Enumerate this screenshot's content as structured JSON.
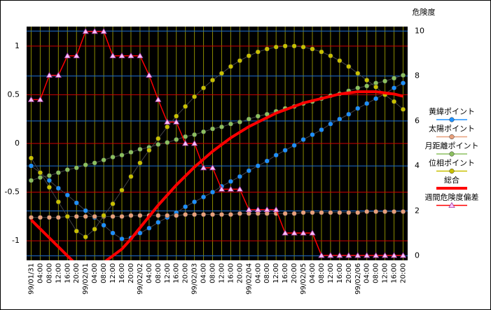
{
  "chart_data": {
    "type": "line",
    "y2_label": "危険度",
    "categories": [
      "99/01/31",
      "04:00",
      "08:00",
      "12:00",
      "16:00",
      "20:00",
      "99/02/01",
      "04:00",
      "08:00",
      "12:00",
      "16:00",
      "20:00",
      "99/02/02",
      "04:00",
      "08:00",
      "12:00",
      "16:00",
      "20:00",
      "99/02/03",
      "04:00",
      "08:00",
      "12:00",
      "16:00",
      "20:00",
      "99/02/04",
      "04:00",
      "08:00",
      "12:00",
      "16:00",
      "20:00",
      "99/02/05",
      "04:00",
      "08:00",
      "12:00",
      "16:00",
      "20:00",
      "99/02/06",
      "04:00",
      "08:00",
      "12:00",
      "16:00",
      "20:00"
    ],
    "ylim": [
      -1.2,
      1.2
    ],
    "yticks": [
      -1,
      -0.5,
      0,
      0.5,
      1
    ],
    "y2lim": [
      -0.2,
      10.2
    ],
    "y2ticks": [
      0,
      2,
      4,
      6,
      8,
      10
    ],
    "grid": true,
    "legend": "right",
    "series": [
      {
        "name": "黄緯ポイント",
        "color": "#1e90ff",
        "marker": "circle",
        "values": [
          -0.23,
          -0.3,
          -0.38,
          -0.46,
          -0.53,
          -0.61,
          -0.69,
          -0.76,
          -0.84,
          -0.92,
          -0.98,
          -0.97,
          -0.92,
          -0.87,
          -0.81,
          -0.76,
          -0.71,
          -0.65,
          -0.6,
          -0.55,
          -0.5,
          -0.44,
          -0.39,
          -0.34,
          -0.28,
          -0.23,
          -0.18,
          -0.12,
          -0.07,
          -0.02,
          0.04,
          0.09,
          0.14,
          0.2,
          0.25,
          0.3,
          0.36,
          0.41,
          0.46,
          0.51,
          0.57,
          0.62
        ]
      },
      {
        "name": "太陽ポイント",
        "color": "#e8a07c",
        "marker": "circle",
        "values": [
          -0.76,
          -0.76,
          -0.76,
          -0.76,
          -0.75,
          -0.75,
          -0.75,
          -0.75,
          -0.75,
          -0.75,
          -0.75,
          -0.74,
          -0.74,
          -0.74,
          -0.74,
          -0.74,
          -0.74,
          -0.73,
          -0.73,
          -0.73,
          -0.73,
          -0.73,
          -0.73,
          -0.72,
          -0.72,
          -0.72,
          -0.72,
          -0.72,
          -0.72,
          -0.72,
          -0.71,
          -0.71,
          -0.71,
          -0.71,
          -0.71,
          -0.71,
          -0.71,
          -0.7,
          -0.7,
          -0.7,
          -0.7,
          -0.7
        ]
      },
      {
        "name": "月距離ポイント",
        "color": "#8cc060",
        "marker": "circle",
        "values": [
          -0.38,
          -0.35,
          -0.33,
          -0.3,
          -0.27,
          -0.25,
          -0.22,
          -0.2,
          -0.17,
          -0.14,
          -0.12,
          -0.09,
          -0.06,
          -0.04,
          -0.01,
          0.01,
          0.04,
          0.07,
          0.09,
          0.12,
          0.15,
          0.17,
          0.2,
          0.22,
          0.25,
          0.28,
          0.3,
          0.33,
          0.36,
          0.38,
          0.41,
          0.43,
          0.46,
          0.49,
          0.51,
          0.54,
          0.57,
          0.59,
          0.62,
          0.64,
          0.67,
          0.7
        ]
      },
      {
        "name": "位相ポイント",
        "color": "#c8c000",
        "marker": "circle",
        "values": [
          -0.15,
          -0.3,
          -0.45,
          -0.6,
          -0.75,
          -0.9,
          -0.96,
          -0.88,
          -0.74,
          -0.62,
          -0.48,
          -0.34,
          -0.2,
          -0.07,
          0.05,
          0.17,
          0.28,
          0.38,
          0.48,
          0.57,
          0.65,
          0.72,
          0.79,
          0.85,
          0.9,
          0.94,
          0.97,
          0.99,
          1.0,
          1.0,
          0.99,
          0.97,
          0.94,
          0.9,
          0.85,
          0.79,
          0.72,
          0.65,
          0.58,
          0.5,
          0.43,
          0.35
        ]
      },
      {
        "name": "総合",
        "color": "#ff0000",
        "axis": "y2",
        "line_width": 4,
        "values": [
          1.6,
          1.2,
          0.8,
          0.4,
          0.0,
          -0.4,
          -0.7,
          -0.6,
          -0.3,
          0.0,
          0.3,
          0.75,
          1.25,
          1.75,
          2.25,
          2.7,
          3.15,
          3.55,
          3.95,
          4.3,
          4.65,
          4.95,
          5.25,
          5.5,
          5.75,
          5.95,
          6.15,
          6.35,
          6.5,
          6.65,
          6.8,
          6.9,
          7.0,
          7.1,
          7.2,
          7.25,
          7.3,
          7.3,
          7.3,
          7.25,
          7.2,
          7.1
        ]
      },
      {
        "name": "週間危険度偏差",
        "color": "#ff0000",
        "marker": "triangle",
        "marker_color": "#ffc0ff",
        "values": [
          0.45,
          0.45,
          0.7,
          0.7,
          0.9,
          0.9,
          1.15,
          1.15,
          1.15,
          0.9,
          0.9,
          0.9,
          0.9,
          0.7,
          0.45,
          0.22,
          0.22,
          0.0,
          0.0,
          -0.25,
          -0.25,
          -0.47,
          -0.47,
          -0.47,
          -0.68,
          -0.68,
          -0.68,
          -0.68,
          -0.92,
          -0.92,
          -0.92,
          -0.92,
          -1.15,
          -1.15,
          -1.15,
          -1.15,
          -1.15,
          -1.15,
          -1.15,
          -1.15,
          -1.15,
          -1.15
        ]
      }
    ]
  }
}
